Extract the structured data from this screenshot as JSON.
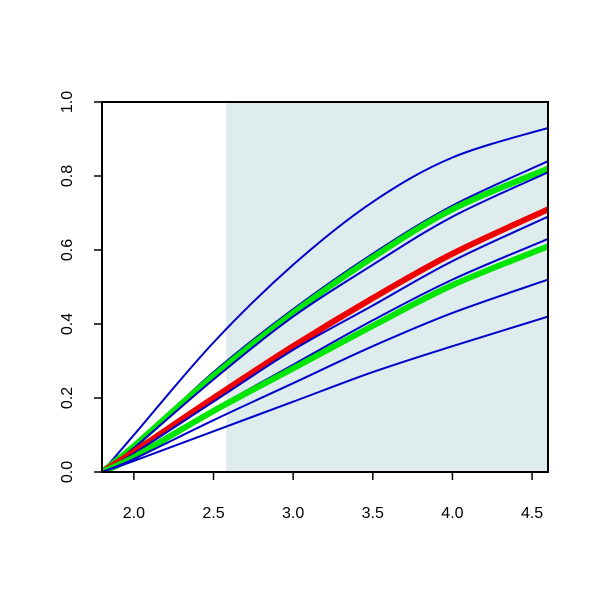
{
  "chart_data": {
    "type": "line",
    "title": "",
    "xlabel": "",
    "ylabel": "",
    "xlim": [
      1.8,
      4.6
    ],
    "ylim": [
      0.0,
      1.0
    ],
    "grid": false,
    "legend": "none",
    "x_ticks": [
      "2.0",
      "2.5",
      "3.0",
      "3.5",
      "4.0",
      "4.5"
    ],
    "y_ticks": [
      "0.0",
      "0.2",
      "0.4",
      "0.6",
      "0.8",
      "1.0"
    ],
    "shaded_region": {
      "x_from": 2.58,
      "x_to": 4.6,
      "color": "#deeced"
    },
    "x": [
      1.8,
      2.0,
      2.5,
      3.0,
      3.5,
      4.0,
      4.6
    ],
    "series": [
      {
        "color": "#0000cc",
        "width": "thin",
        "values": [
          0.0,
          0.1,
          0.35,
          0.56,
          0.73,
          0.85,
          0.93
        ]
      },
      {
        "color": "#0000cc",
        "width": "thin",
        "values": [
          0.0,
          0.07,
          0.27,
          0.44,
          0.59,
          0.72,
          0.84
        ]
      },
      {
        "color": "#00e600",
        "width": "thick",
        "values": [
          0.0,
          0.07,
          0.26,
          0.43,
          0.58,
          0.71,
          0.82
        ]
      },
      {
        "color": "#0000cc",
        "width": "thin",
        "values": [
          0.0,
          0.065,
          0.25,
          0.42,
          0.56,
          0.69,
          0.81
        ]
      },
      {
        "color": "#ee0000",
        "width": "thick",
        "values": [
          0.0,
          0.055,
          0.2,
          0.34,
          0.47,
          0.59,
          0.71
        ]
      },
      {
        "color": "#0000cc",
        "width": "thin",
        "values": [
          0.0,
          0.05,
          0.19,
          0.33,
          0.45,
          0.57,
          0.69
        ]
      },
      {
        "color": "#0000cc",
        "width": "thin",
        "values": [
          0.0,
          0.045,
          0.17,
          0.29,
          0.41,
          0.52,
          0.63
        ]
      },
      {
        "color": "#00e600",
        "width": "thick",
        "values": [
          0.0,
          0.04,
          0.165,
          0.28,
          0.395,
          0.505,
          0.61
        ]
      },
      {
        "color": "#0000cc",
        "width": "thin",
        "values": [
          0.0,
          0.035,
          0.14,
          0.24,
          0.34,
          0.43,
          0.52
        ]
      },
      {
        "color": "#0000cc",
        "width": "thin",
        "values": [
          0.0,
          0.03,
          0.11,
          0.19,
          0.27,
          0.34,
          0.42
        ]
      }
    ]
  }
}
